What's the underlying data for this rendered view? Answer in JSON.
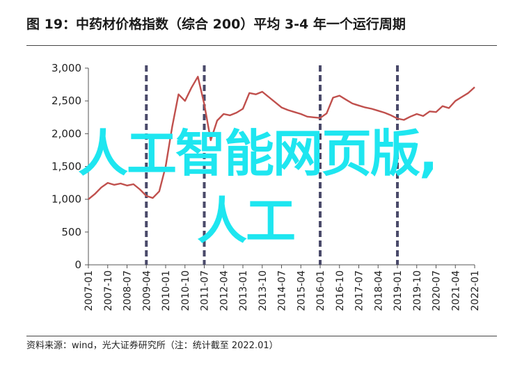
{
  "header": {
    "title": "图 19：中药材价格指数（综合 200）平均 3-4 年一个运行周期"
  },
  "footer": {
    "source": "资料来源：wind，光大证券研究所（注：统计截至 2022.01）"
  },
  "overlay": {
    "line1": "人工智能网页版,",
    "line2": "人工"
  },
  "colors": {
    "line": "#c0504d",
    "divider": "#4a4a6a",
    "overlay": "#1ee6f0"
  },
  "chart_data": {
    "type": "line",
    "title": "",
    "xlabel": "",
    "ylabel": "",
    "ylim": [
      0,
      3000
    ],
    "y_ticks": [
      "0",
      "500",
      "1,000",
      "1,500",
      "2,000",
      "2,500",
      "3,000"
    ],
    "x_ticks": [
      "2007-01",
      "2007-10",
      "2008-07",
      "2009-04",
      "2010-01",
      "2010-10",
      "2011-07",
      "2012-04",
      "2013-01",
      "2013-10",
      "2014-07",
      "2015-04",
      "2016-01",
      "2016-10",
      "2017-07",
      "2018-04",
      "2019-01",
      "2019-10",
      "2020-07",
      "2021-04",
      "2022-01"
    ],
    "cycle_markers": [
      "2009-04",
      "2011-07",
      "2016-01",
      "2019-01"
    ],
    "series": [
      {
        "x": [
          "2007-01",
          "2007-04",
          "2007-07",
          "2007-10",
          "2008-01",
          "2008-04",
          "2008-07",
          "2008-10",
          "2009-01",
          "2009-04",
          "2009-07",
          "2009-10",
          "2010-01",
          "2010-04",
          "2010-07",
          "2010-10",
          "2011-01",
          "2011-04",
          "2011-07",
          "2011-10",
          "2012-01",
          "2012-04",
          "2012-07",
          "2012-10",
          "2013-01",
          "2013-04",
          "2013-07",
          "2013-10",
          "2014-01",
          "2014-04",
          "2014-07",
          "2014-10",
          "2015-01",
          "2015-04",
          "2015-07",
          "2015-10",
          "2016-01",
          "2016-04",
          "2016-07",
          "2016-10",
          "2017-01",
          "2017-04",
          "2017-07",
          "2017-10",
          "2018-01",
          "2018-04",
          "2018-07",
          "2018-10",
          "2019-01",
          "2019-04",
          "2019-07",
          "2019-10",
          "2020-01",
          "2020-04",
          "2020-07",
          "2020-10",
          "2021-01",
          "2021-04",
          "2021-07",
          "2021-10",
          "2022-01"
        ],
        "values": [
          1000,
          1080,
          1180,
          1250,
          1220,
          1240,
          1210,
          1230,
          1150,
          1050,
          1020,
          1120,
          1500,
          2100,
          2600,
          2500,
          2700,
          2870,
          2450,
          1900,
          2200,
          2300,
          2280,
          2320,
          2380,
          2620,
          2600,
          2640,
          2560,
          2480,
          2400,
          2360,
          2330,
          2300,
          2260,
          2250,
          2240,
          2310,
          2550,
          2580,
          2520,
          2460,
          2430,
          2400,
          2380,
          2350,
          2320,
          2280,
          2230,
          2210,
          2260,
          2300,
          2270,
          2340,
          2330,
          2420,
          2390,
          2500,
          2560,
          2620,
          2710
        ]
      }
    ]
  }
}
